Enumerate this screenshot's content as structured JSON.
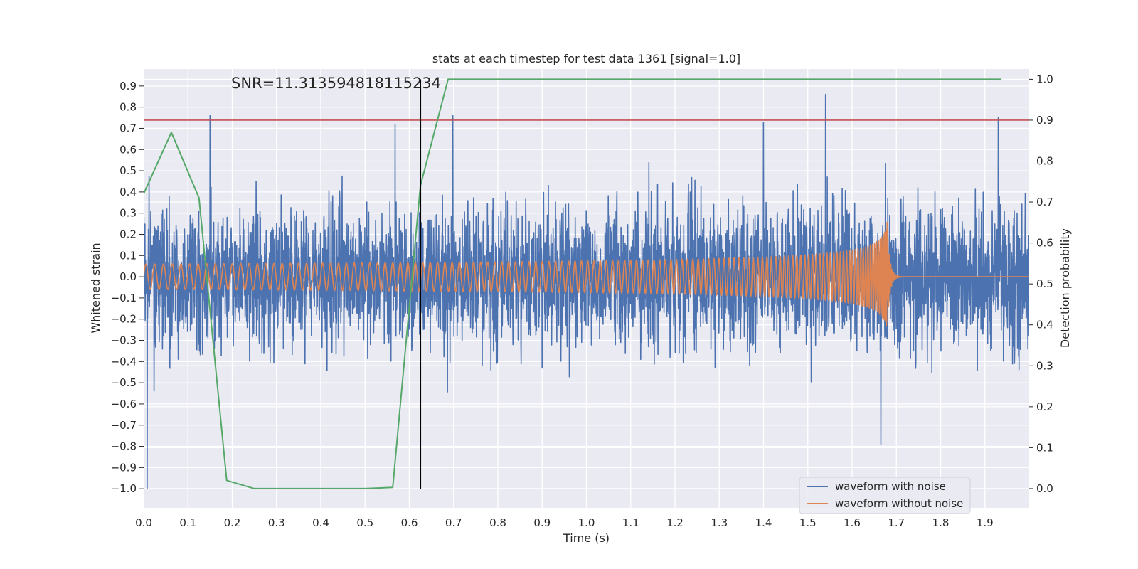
{
  "chart_data": {
    "type": "line",
    "title": "stats at each timestep for test data 1361 [signal=1.0]",
    "xlabel": "Time (s)",
    "ylabel": "Whitened strain",
    "y2label": "Detection probability",
    "annotation": "SNR=11.313594818115234",
    "xlim": [
      0.0,
      2.0
    ],
    "ylim": [
      -1.09,
      0.98
    ],
    "y2lim": [
      -0.047,
      1.025
    ],
    "x_ticks": [
      0.0,
      0.1,
      0.2,
      0.3,
      0.4,
      0.5,
      0.6,
      0.7,
      0.8,
      0.9,
      1.0,
      1.1,
      1.2,
      1.3,
      1.4,
      1.5,
      1.6,
      1.7,
      1.8,
      1.9
    ],
    "x_tick_labels": [
      "0.0",
      "0.1",
      "0.2",
      "0.3",
      "0.4",
      "0.5",
      "0.6",
      "0.7",
      "0.8",
      "0.9",
      "1.0",
      "1.1",
      "1.2",
      "1.3",
      "1.4",
      "1.5",
      "1.6",
      "1.7",
      "1.8",
      "1.9"
    ],
    "y_ticks": [
      0.9,
      0.8,
      0.7,
      0.6,
      0.5,
      0.4,
      0.3,
      0.2,
      0.1,
      0.0,
      -0.1,
      -0.2,
      -0.3,
      -0.4,
      -0.5,
      -0.6,
      -0.7,
      -0.8,
      -0.9,
      -1.0
    ],
    "y_tick_labels": [
      "0.9",
      "0.8",
      "0.7",
      "0.6",
      "0.5",
      "0.4",
      "0.3",
      "0.2",
      "0.1",
      "0.0",
      "−0.1",
      "−0.2",
      "−0.3",
      "−0.4",
      "−0.5",
      "−0.6",
      "−0.7",
      "−0.8",
      "−0.9",
      "−1.0"
    ],
    "y2_ticks": [
      1.0,
      0.9,
      0.8,
      0.7,
      0.6,
      0.5,
      0.4,
      0.3,
      0.2,
      0.1,
      0.0
    ],
    "y2_tick_labels": [
      "1.0",
      "0.9",
      "0.8",
      "0.7",
      "0.6",
      "0.5",
      "0.4",
      "0.3",
      "0.2",
      "0.1",
      "0.0"
    ],
    "grid": true,
    "legend_placement": "lower-right",
    "series": [
      {
        "name": "waveform with noise",
        "color": "#4c72b0",
        "kind": "noise",
        "x_range": [
          0.0,
          2.0
        ],
        "approx_std": 0.26,
        "notable_points": [
          {
            "x": 0.008,
            "y": -1.0
          },
          {
            "x": 0.15,
            "y": 0.76
          },
          {
            "x": 0.568,
            "y": 0.72
          },
          {
            "x": 0.698,
            "y": 0.76
          },
          {
            "x": 1.4,
            "y": 0.73
          },
          {
            "x": 1.54,
            "y": 0.86
          },
          {
            "x": 1.665,
            "y": -0.79
          },
          {
            "x": 1.93,
            "y": 0.75
          }
        ]
      },
      {
        "name": "waveform without noise",
        "color": "#dd8452",
        "kind": "chirp",
        "x_range": [
          0.0,
          2.0
        ],
        "merger_time": 1.68,
        "base_amplitude": 0.06,
        "peak_amplitude": 0.27
      },
      {
        "name": "",
        "color": "#55a868",
        "axis": "right",
        "x": [
          0.0,
          0.0625,
          0.125,
          0.1875,
          0.25,
          0.3125,
          0.375,
          0.4375,
          0.5,
          0.5625,
          0.625,
          0.6875,
          0.75,
          0.8125,
          0.875,
          0.9375,
          1.0,
          1.0625,
          1.125,
          1.1875,
          1.25,
          1.3125,
          1.375,
          1.4375,
          1.5,
          1.5625,
          1.625,
          1.6875,
          1.75,
          1.8125,
          1.875,
          1.9375
        ],
        "y": [
          0.72,
          0.87,
          0.71,
          0.02,
          0.0,
          0.0,
          0.0,
          0.0,
          0.0,
          0.003,
          0.74,
          1.0,
          1.0,
          1.0,
          1.0,
          1.0,
          1.0,
          1.0,
          1.0,
          1.0,
          1.0,
          1.0,
          1.0,
          1.0,
          1.0,
          1.0,
          1.0,
          1.0,
          1.0,
          1.0,
          1.0,
          1.0
        ]
      }
    ],
    "threshold": {
      "axis": "right",
      "y": 0.9,
      "color": "#c44e52"
    },
    "marker_line": {
      "x": 0.625,
      "y2_range": [
        0.0,
        1.0
      ],
      "color": "#000000"
    },
    "legend": [
      {
        "label": "waveform with noise",
        "color": "#4c72b0"
      },
      {
        "label": "waveform without noise",
        "color": "#dd8452"
      }
    ],
    "colors": {
      "plot_background": "#eaeaf2",
      "grid": "#ffffff",
      "text": "#262626"
    }
  }
}
